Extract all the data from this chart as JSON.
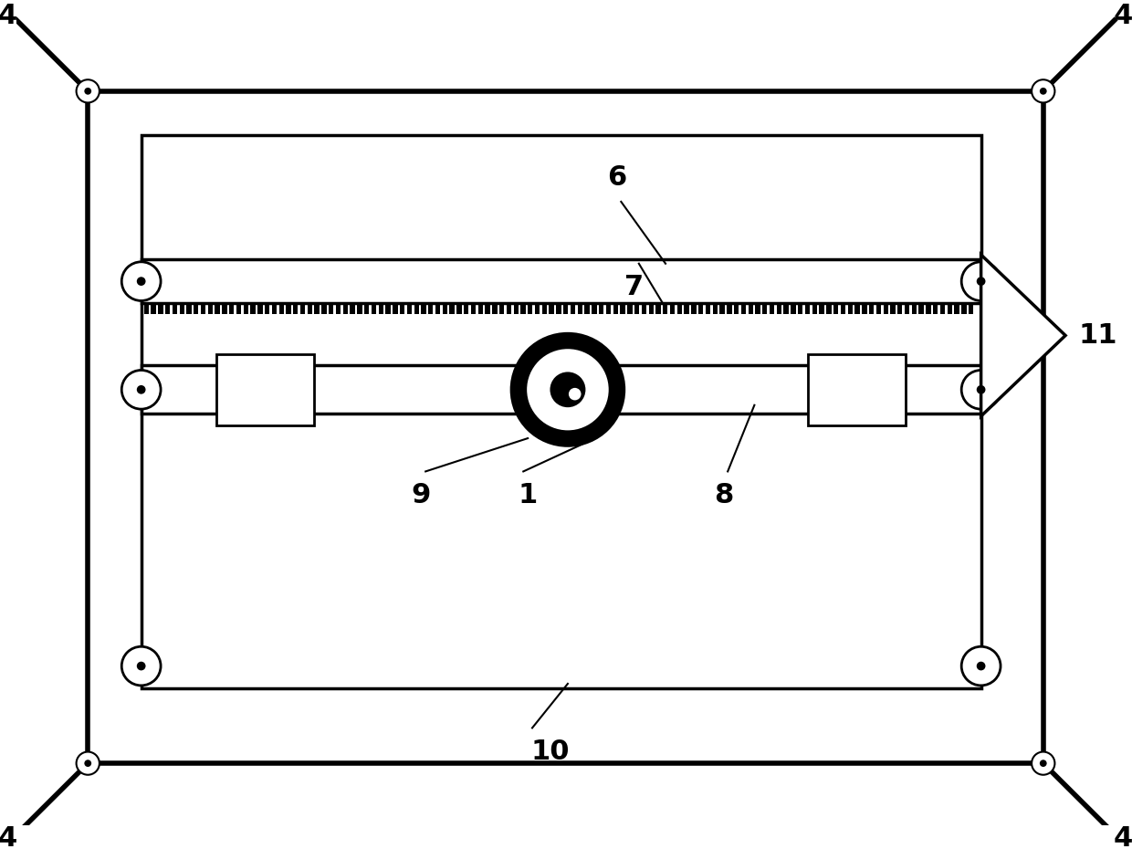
{
  "bg_color": "#ffffff",
  "line_color": "#000000",
  "fig_width": 12.4,
  "fig_height": 9.3
}
